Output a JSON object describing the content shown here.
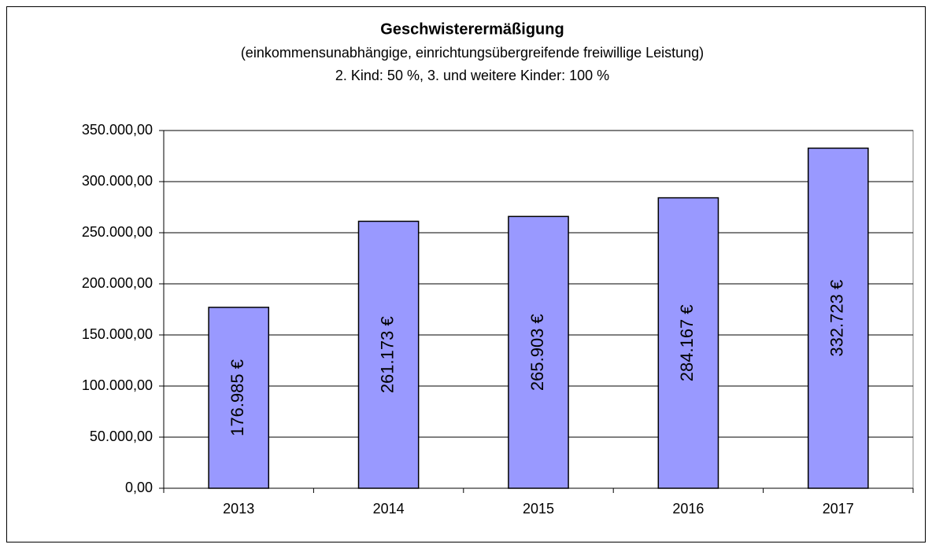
{
  "chart_data": {
    "type": "bar",
    "title": "Geschwisterermäßigung",
    "subtitle": [
      "(einkommensunabhängige, einrichtungsübergreifende freiwillige Leistung)",
      "2. Kind: 50 %, 3. und weitere Kinder: 100 %"
    ],
    "categories": [
      "2013",
      "2014",
      "2015",
      "2016",
      "2017"
    ],
    "values": [
      176985,
      261173,
      265903,
      284167,
      332723
    ],
    "value_labels": [
      "176.985 €",
      "261.173 €",
      "265.903 €",
      "284.167 €",
      "332.723 €"
    ],
    "color": "#9999ff",
    "ylim": [
      0,
      350000
    ],
    "yticks": [
      {
        "value": 0,
        "label": "0,00"
      },
      {
        "value": 50000,
        "label": "50.000,00"
      },
      {
        "value": 100000,
        "label": "100.000,00"
      },
      {
        "value": 150000,
        "label": "150.000,00"
      },
      {
        "value": 200000,
        "label": "200.000,00"
      },
      {
        "value": 250000,
        "label": "250.000,00"
      },
      {
        "value": 300000,
        "label": "300.000,00"
      },
      {
        "value": 350000,
        "label": "350.000,00"
      }
    ],
    "grid": true
  }
}
